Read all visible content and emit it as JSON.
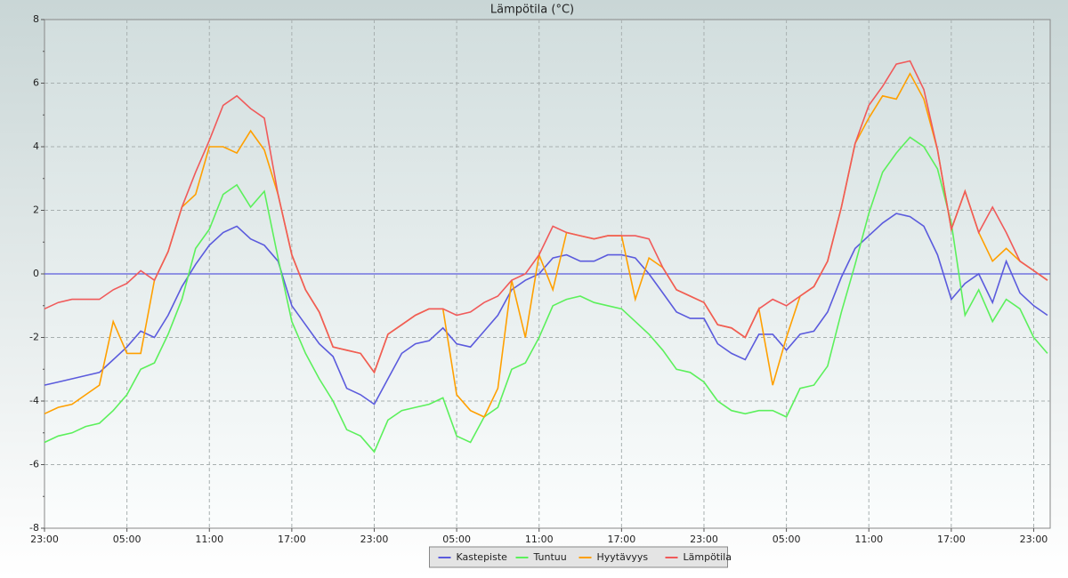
{
  "chart_data": {
    "type": "line",
    "title": "Lämpötila (°C)",
    "x": [
      0,
      1,
      2,
      3,
      4,
      5,
      6,
      7,
      8,
      9,
      10,
      11,
      12,
      13,
      14,
      15,
      16,
      17,
      18,
      19,
      20,
      21,
      22,
      23,
      24,
      25,
      26,
      27,
      28,
      29,
      30,
      31,
      32,
      33,
      34,
      35,
      36,
      37,
      38,
      39,
      40,
      41,
      42,
      43,
      44,
      45,
      46,
      47,
      48,
      49,
      50,
      51,
      52,
      53,
      54,
      55,
      56,
      57,
      58,
      59,
      60,
      61,
      62,
      63,
      64,
      65,
      66,
      67,
      68,
      69,
      70,
      71,
      72,
      73
    ],
    "xlim": [
      0,
      73.2
    ],
    "xticks": [
      {
        "value": 0,
        "label": "23:00"
      },
      {
        "value": 6,
        "label": "05:00"
      },
      {
        "value": 12,
        "label": "11:00"
      },
      {
        "value": 18,
        "label": "17:00"
      },
      {
        "value": 24,
        "label": "23:00"
      },
      {
        "value": 30,
        "label": "05:00"
      },
      {
        "value": 36,
        "label": "11:00"
      },
      {
        "value": 42,
        "label": "17:00"
      },
      {
        "value": 48,
        "label": "23:00"
      },
      {
        "value": 54,
        "label": "05:00"
      },
      {
        "value": 60,
        "label": "11:00"
      },
      {
        "value": 66,
        "label": "17:00"
      },
      {
        "value": 72,
        "label": "23:00"
      }
    ],
    "ylim": [
      -8,
      8
    ],
    "yticks": [
      -8,
      -6,
      -4,
      -2,
      0,
      2,
      4,
      6,
      8
    ],
    "grid": true,
    "zero_line_color": "#5b5bdd",
    "legend": "bottom",
    "series": [
      {
        "name": "Kastepiste",
        "color": "#5b5bdd",
        "values": [
          -3.5,
          -3.4,
          -3.3,
          -3.2,
          -3.1,
          -2.7,
          -2.3,
          -1.8,
          -2.0,
          -1.3,
          -0.4,
          0.3,
          0.9,
          1.3,
          1.5,
          1.1,
          0.9,
          0.4,
          -1.0,
          -1.6,
          -2.2,
          -2.6,
          -3.6,
          -3.8,
          -4.1,
          -3.3,
          -2.5,
          -2.2,
          -2.1,
          -1.7,
          -2.2,
          -2.3,
          -1.8,
          -1.3,
          -0.5,
          -0.2,
          0.0,
          0.5,
          0.6,
          0.4,
          0.4,
          0.6,
          0.6,
          0.5,
          0.0,
          -0.6,
          -1.2,
          -1.4,
          -1.4,
          -2.2,
          -2.5,
          -2.7,
          -1.9,
          -1.9,
          -2.4,
          -1.9,
          -1.8,
          -1.2,
          -0.1,
          0.8,
          1.2,
          1.6,
          1.9,
          1.8,
          1.5,
          0.6,
          -0.8,
          -0.3,
          0.0,
          -0.9,
          0.4,
          -0.6,
          -1.0,
          -1.3
        ]
      },
      {
        "name": "Tuntuu",
        "color": "#5cf05c",
        "values": [
          -5.3,
          -5.1,
          -5.0,
          -4.8,
          -4.7,
          -4.3,
          -3.8,
          -3.0,
          -2.8,
          -1.9,
          -0.8,
          0.8,
          1.4,
          2.5,
          2.8,
          2.1,
          2.6,
          0.5,
          -1.5,
          -2.5,
          -3.3,
          -4.0,
          -4.9,
          -5.1,
          -5.6,
          -4.6,
          -4.3,
          -4.2,
          -4.1,
          -3.9,
          -5.1,
          -5.3,
          -4.5,
          -4.2,
          -3.0,
          -2.8,
          -2.0,
          -1.0,
          -0.8,
          -0.7,
          -0.9,
          -1.0,
          -1.1,
          -1.5,
          -1.9,
          -2.4,
          -3.0,
          -3.1,
          -3.4,
          -4.0,
          -4.3,
          -4.4,
          -4.3,
          -4.3,
          -4.5,
          -3.6,
          -3.5,
          -2.9,
          -1.2,
          0.3,
          1.9,
          3.2,
          3.8,
          4.3,
          4.0,
          3.3,
          1.6,
          -1.3,
          -0.5,
          -1.5,
          -0.8,
          -1.1,
          -2.0,
          -2.5
        ]
      },
      {
        "name": "Hyytävyys",
        "color": "#ffa000",
        "values": [
          -4.4,
          -4.2,
          -4.1,
          -3.8,
          -3.5,
          -1.5,
          -2.5,
          -2.5,
          -0.2,
          0.7,
          2.1,
          2.5,
          4.0,
          4.0,
          3.8,
          4.5,
          3.9,
          2.5,
          0.6,
          -0.5,
          -1.2,
          -2.3,
          -2.4,
          -2.5,
          -3.1,
          -1.9,
          -1.6,
          -1.3,
          -1.1,
          -1.1,
          -3.8,
          -4.3,
          -4.5,
          -3.6,
          -0.2,
          -2.0,
          0.6,
          -0.5,
          1.3,
          1.2,
          1.1,
          1.2,
          1.2,
          -0.8,
          0.5,
          0.2,
          -0.5,
          -0.7,
          -0.9,
          -1.6,
          -1.7,
          -2.0,
          -1.1,
          -3.5,
          -2.0,
          -0.7,
          -0.4,
          0.4,
          2.1,
          4.1,
          4.9,
          5.6,
          5.5,
          6.3,
          5.5,
          3.9,
          1.4,
          2.6,
          1.3,
          0.4,
          0.8,
          0.4,
          0.1,
          -0.2
        ]
      },
      {
        "name": "Lämpötila",
        "color": "#f05a5a",
        "values": [
          -1.1,
          -0.9,
          -0.8,
          -0.8,
          -0.8,
          -0.5,
          -0.3,
          0.1,
          -0.2,
          0.7,
          2.1,
          3.2,
          4.2,
          5.3,
          5.6,
          5.2,
          4.9,
          2.5,
          0.6,
          -0.5,
          -1.2,
          -2.3,
          -2.4,
          -2.5,
          -3.1,
          -1.9,
          -1.6,
          -1.3,
          -1.1,
          -1.1,
          -1.3,
          -1.2,
          -0.9,
          -0.7,
          -0.2,
          0.0,
          0.6,
          1.5,
          1.3,
          1.2,
          1.1,
          1.2,
          1.2,
          1.2,
          1.1,
          0.2,
          -0.5,
          -0.7,
          -0.9,
          -1.6,
          -1.7,
          -2.0,
          -1.1,
          -0.8,
          -1.0,
          -0.7,
          -0.4,
          0.4,
          2.1,
          4.1,
          5.3,
          5.9,
          6.6,
          6.7,
          5.8,
          3.9,
          1.4,
          2.6,
          1.3,
          2.1,
          1.3,
          0.4,
          0.1,
          -0.2
        ]
      }
    ]
  }
}
